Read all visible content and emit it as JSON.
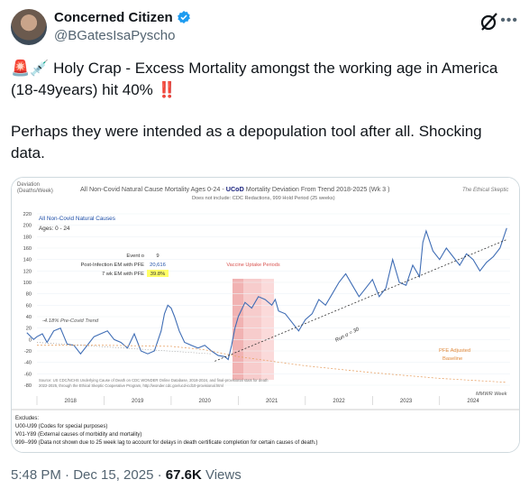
{
  "author": {
    "display_name": "Concerned Citizen",
    "handle": "@BGatesIsaPyscho"
  },
  "tweet": {
    "line1_emoji": "🚨💉",
    "line1_text": "Holy Crap - Excess Mortality amongst the working age in America (18-49years) hit 40%",
    "line1_suffix": "‼️",
    "line2": "Perhaps they were intended as a depopulation tool after all.  Shocking data."
  },
  "chart": {
    "y_title_line1": "Deviation",
    "y_title_line2": "(Deaths/Week)",
    "title_prefix": "All Non-Covid Natural Cause Mortality Ages 0-24 - ",
    "title_bold": "UCoD",
    "title_suffix": " Mortality Deviation From Trend  2018-2025 (Wk 3 )",
    "subtitle": "Does not include: CDC Redactions, 999 Hold Period (25 weeks)",
    "brand": "The Ethical Skeptic",
    "series_label": "All Non-Covid Natural Causes",
    "ages_label": "Ages: 0 - 24",
    "stats": [
      {
        "label": "Event o",
        "value": "9"
      },
      {
        "label": "Post-Infection EM with PFE",
        "value": "20,616"
      },
      {
        "label": "7 wk EM with PFE",
        "value": "39.8%"
      }
    ],
    "vaccine_label": "Vaccine Uptake Periods",
    "pre_covid_label": "-4.18% Pre-Covid Trend",
    "run_label": "Run σ = 30",
    "pfe_label_1": "PFE Adjusted",
    "pfe_label_2": "Baseline",
    "source_1": "Source: US CDC/NCHS Underlying Cause of Death on CDC WONDER Online Database, 2018-2024, and final-provisional stats for death",
    "source_2": "2022-2025, through the Ethical Skeptic Cooperative Program, http://wonder.cdc.gov/ucd-icd10-provisional.html",
    "mmwr_label": "MMWR Week",
    "y_ticks": [
      "220",
      "200",
      "180",
      "160",
      "140",
      "120",
      "100",
      "80",
      "60",
      "40",
      "20",
      "0",
      "-20",
      "-40",
      "-60",
      "-80"
    ],
    "x_years": [
      "2018",
      "2019",
      "2020",
      "2021",
      "2022",
      "2023",
      "2024"
    ],
    "excludes": [
      "Excludes:",
      "U00-U99 (Codes for special purposes)",
      "V01-Y89 (External causes of morbidity and mortality)",
      "999--999 (Data not shown due to 25 week lag to account for delays in death certificate completion for certain causes of death.)"
    ]
  },
  "chart_data": {
    "type": "line",
    "title": "All Non-Covid Natural Cause Mortality Ages 0-24 - UCoD Mortality Deviation From Trend  2018-2025 (Wk 3 )",
    "ylabel": "Deviation (Deaths/Week)",
    "xlabel": "MMWR Week",
    "ylim": [
      -80,
      220
    ],
    "x_range": [
      2018,
      2025.05
    ],
    "series": [
      {
        "name": "All Non-Covid Natural Causes",
        "x": [
          2017.85,
          2017.95,
          2018.0,
          2018.08,
          2018.15,
          2018.25,
          2018.35,
          2018.45,
          2018.55,
          2018.65,
          2018.75,
          2018.85,
          2018.95,
          2019.05,
          2019.15,
          2019.25,
          2019.35,
          2019.45,
          2019.55,
          2019.65,
          2019.75,
          2019.85,
          2019.9,
          2019.95,
          2020.0,
          2020.05,
          2020.12,
          2020.2,
          2020.3,
          2020.4,
          2020.5,
          2020.6,
          2020.7,
          2020.8,
          2020.85,
          2020.9,
          2020.95,
          2021.0,
          2021.1,
          2021.2,
          2021.3,
          2021.4,
          2021.5,
          2021.55,
          2021.6,
          2021.7,
          2021.8,
          2021.9,
          2022.0,
          2022.1,
          2022.2,
          2022.3,
          2022.4,
          2022.5,
          2022.6,
          2022.7,
          2022.8,
          2022.9,
          2023.0,
          2023.1,
          2023.2,
          2023.3,
          2023.4,
          2023.5,
          2023.6,
          2023.7,
          2023.75,
          2023.8,
          2023.9,
          2024.0,
          2024.1,
          2024.2,
          2024.3,
          2024.4,
          2024.5,
          2024.6,
          2024.7,
          2024.8,
          2024.9,
          2025.0
        ],
        "y": [
          12,
          0,
          5,
          10,
          -5,
          15,
          20,
          -8,
          -10,
          -25,
          -10,
          5,
          10,
          15,
          0,
          -5,
          -15,
          10,
          -20,
          -25,
          -20,
          15,
          45,
          60,
          55,
          40,
          15,
          -5,
          -10,
          -15,
          -10,
          -20,
          -28,
          -30,
          -35,
          -10,
          20,
          40,
          65,
          55,
          75,
          70,
          60,
          70,
          50,
          45,
          30,
          15,
          35,
          45,
          70,
          60,
          80,
          100,
          115,
          95,
          75,
          90,
          105,
          75,
          90,
          140,
          100,
          95,
          130,
          110,
          170,
          190,
          155,
          140,
          160,
          145,
          130,
          150,
          140,
          120,
          135,
          145,
          160,
          195
        ]
      },
      {
        "name": "Run σ = 30",
        "x": [
          2020.65,
          2025.0
        ],
        "y": [
          -38,
          175
        ]
      },
      {
        "name": "PFE Adjusted Baseline",
        "x": [
          2018.0,
          2019.0,
          2020.0,
          2020.5,
          2020.8,
          2021.0,
          2021.5,
          2022.0,
          2023.0,
          2024.0,
          2025.0
        ],
        "y": [
          -10,
          -10,
          -12,
          -18,
          -25,
          -30,
          -38,
          -46,
          -58,
          -68,
          -75
        ]
      },
      {
        "name": "-4.18% Pre-Covid Trend",
        "x": [
          2018.0,
          2020.6
        ],
        "y": [
          -5,
          -25
        ]
      }
    ]
  },
  "footer": {
    "time": "5:48 PM · Dec 15, 2025 ·",
    "views_count": "67.6K",
    "views_label": "Views"
  }
}
